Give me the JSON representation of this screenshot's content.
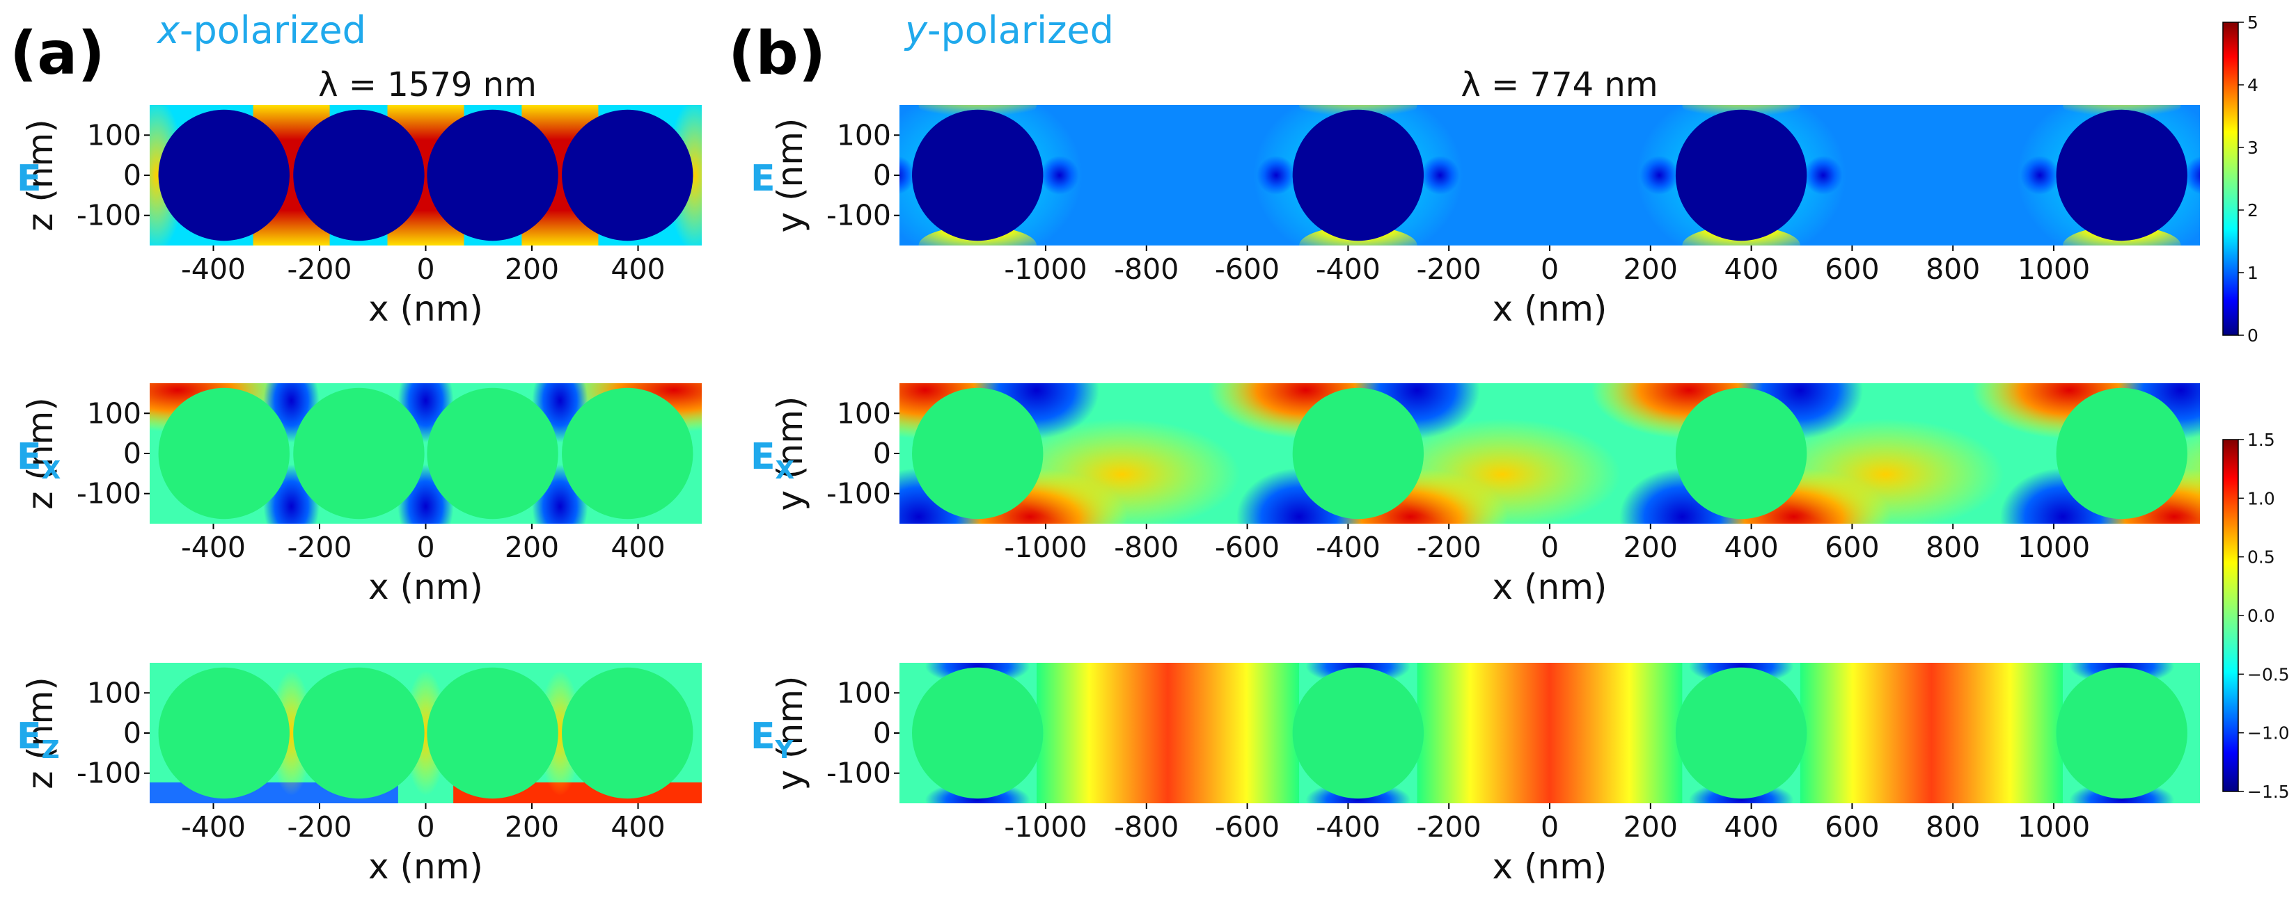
{
  "figure": {
    "panel_a_label": "(a)",
    "panel_b_label": "(b)",
    "panel_a_pol_prefix": "x",
    "panel_a_pol_suffix": "-polarized",
    "panel_b_pol_prefix": "y",
    "panel_b_pol_suffix": "-polarized",
    "panel_a_wavelength": "λ = 1579 nm",
    "panel_b_wavelength": "λ = 774 nm"
  },
  "chart_data": [
    {
      "type": "heatmap",
      "panel": "a",
      "row": 1,
      "field": "E",
      "row_label": "E",
      "row_subscript": "",
      "xlabel": "x (nm)",
      "ylabel": "z (nm)",
      "xlim": [
        -520,
        520
      ],
      "ylim": [
        -175,
        175
      ],
      "xticks": [
        -400,
        -200,
        0,
        200,
        400
      ],
      "yticks": [
        -100,
        0,
        100
      ],
      "ytick_labels": [
        "-100",
        "0",
        "100"
      ],
      "colorbar": "magnitude",
      "sphere_centers_nm": [
        -380,
        -126,
        126,
        380
      ],
      "sphere_radius_nm": 160
    },
    {
      "type": "heatmap",
      "panel": "a",
      "row": 2,
      "field": "Ex",
      "row_label": "E",
      "row_subscript": "X",
      "xlabel": "x (nm)",
      "ylabel": "z (nm)",
      "xlim": [
        -520,
        520
      ],
      "ylim": [
        -175,
        175
      ],
      "xticks": [
        -400,
        -200,
        0,
        200,
        400
      ],
      "yticks": [
        -100,
        0,
        100
      ],
      "ytick_labels": [
        "-100",
        "0",
        "100"
      ],
      "colorbar": "signed",
      "sphere_centers_nm": [
        -380,
        -126,
        126,
        380
      ],
      "sphere_radius_nm": 160
    },
    {
      "type": "heatmap",
      "panel": "a",
      "row": 3,
      "field": "Ez",
      "row_label": "E",
      "row_subscript": "Z",
      "xlabel": "x (nm)",
      "ylabel": "z (nm)",
      "xlim": [
        -520,
        520
      ],
      "ylim": [
        -175,
        175
      ],
      "xticks": [
        -400,
        -200,
        0,
        200,
        400
      ],
      "yticks": [
        -100,
        0,
        100
      ],
      "ytick_labels": [
        "-100",
        "0",
        "100"
      ],
      "colorbar": "signed",
      "sphere_centers_nm": [
        -380,
        -126,
        126,
        380
      ],
      "sphere_radius_nm": 160
    },
    {
      "type": "heatmap",
      "panel": "b",
      "row": 1,
      "field": "E",
      "row_label": "E",
      "row_subscript": "",
      "xlabel": "x (nm)",
      "ylabel": "y (nm)",
      "xlim": [
        -1290,
        1290
      ],
      "ylim": [
        -175,
        175
      ],
      "xticks": [
        -1000,
        -800,
        -600,
        -400,
        -200,
        0,
        200,
        400,
        600,
        800,
        1000
      ],
      "yticks": [
        -100,
        0,
        100
      ],
      "ytick_labels": [
        "-100",
        "0",
        "100"
      ],
      "colorbar": "magnitude",
      "sphere_centers_nm": [
        -1135,
        -380,
        380,
        1135
      ],
      "sphere_radius_nm": 160
    },
    {
      "type": "heatmap",
      "panel": "b",
      "row": 2,
      "field": "Ex",
      "row_label": "E",
      "row_subscript": "X",
      "xlabel": "x (nm)",
      "ylabel": "y (nm)",
      "xlim": [
        -1290,
        1290
      ],
      "ylim": [
        -175,
        175
      ],
      "xticks": [
        -1000,
        -800,
        -600,
        -400,
        -200,
        0,
        200,
        400,
        600,
        800,
        1000
      ],
      "yticks": [
        -100,
        0,
        100
      ],
      "ytick_labels": [
        "-100",
        "0",
        "100"
      ],
      "colorbar": "signed",
      "sphere_centers_nm": [
        -1135,
        -380,
        380,
        1135
      ],
      "sphere_radius_nm": 160
    },
    {
      "type": "heatmap",
      "panel": "b",
      "row": 3,
      "field": "Ey",
      "row_label": "E",
      "row_subscript": "Y",
      "xlabel": "x (nm)",
      "ylabel": "y (nm)",
      "xlim": [
        -1290,
        1290
      ],
      "ylim": [
        -175,
        175
      ],
      "xticks": [
        -1000,
        -800,
        -600,
        -400,
        -200,
        0,
        200,
        400,
        600,
        800,
        1000
      ],
      "yticks": [
        -100,
        0,
        100
      ],
      "ytick_labels": [
        "-100",
        "0",
        "100"
      ],
      "colorbar": "signed",
      "sphere_centers_nm": [
        -1135,
        -380,
        380,
        1135
      ],
      "sphere_radius_nm": 160
    }
  ],
  "colorbars": {
    "magnitude": {
      "range": [
        0,
        5
      ],
      "ticks": [
        "0",
        "1",
        "2",
        "3",
        "4",
        "5"
      ]
    },
    "signed": {
      "range": [
        -1.5,
        1.5
      ],
      "ticks": [
        "−1.5",
        "−1.0",
        "−0.5",
        "0.0",
        "0.5",
        "1.0",
        "1.5"
      ]
    }
  },
  "colors": {
    "accent": "#1fa9ec",
    "sphere_magnitude": "#00009a",
    "sphere_signed": "#25f07a",
    "jet": [
      "#000080",
      "#0000ff",
      "#0080ff",
      "#00ffff",
      "#80ff80",
      "#ffff00",
      "#ff8000",
      "#ff0000",
      "#800000"
    ]
  }
}
